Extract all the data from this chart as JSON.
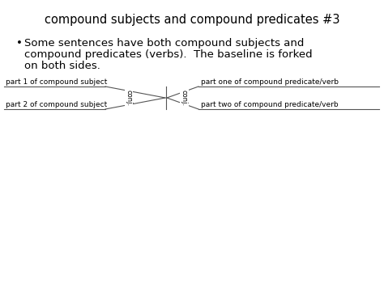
{
  "title": "compound subjects and compound predicates #3",
  "bullet_text": "Some sentences have both compound subjects and\ncompound predicates (verbs).  The baseline is forked\non both sides.",
  "label_part1_subject": "part 1 of compound subject",
  "label_part2_subject": "part 2 of compound subject",
  "label_part1_predicate": "part one of compound predicate/verb",
  "label_part2_predicate": "part two of compound predicate/verb",
  "conj_label": "conj.",
  "bg_color": "#ffffff",
  "text_color": "#000000",
  "line_color": "#555555",
  "title_fontsize": 10.5,
  "body_fontsize": 9.5,
  "label_fontsize": 6.5,
  "conj_fontsize": 6.0
}
